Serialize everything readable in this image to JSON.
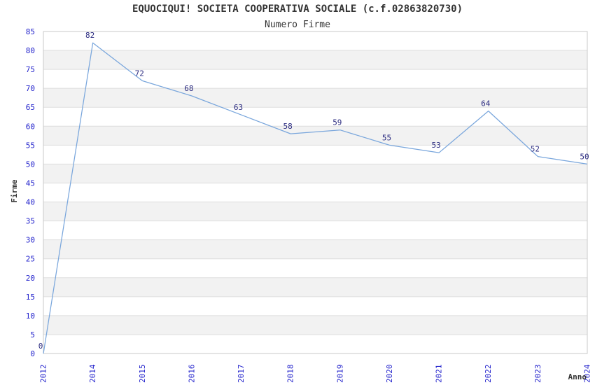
{
  "title": "EQUOCIQUI! SOCIETA COOPERATIVA SOCIALE (c.f.02863820730)",
  "subtitle": "Numero Firme",
  "chart_data": {
    "type": "line",
    "title": "EQUOCIQUI! SOCIETA COOPERATIVA SOCIALE (c.f.02863820730)",
    "subtitle": "Numero Firme",
    "xlabel": "Anno",
    "ylabel": "Firme",
    "categories": [
      "2012",
      "2014",
      "2015",
      "2016",
      "2017",
      "2018",
      "2019",
      "2020",
      "2021",
      "2022",
      "2023",
      "2024"
    ],
    "values": [
      0,
      82,
      72,
      68,
      63,
      58,
      59,
      55,
      53,
      64,
      52,
      50
    ],
    "point_labels": [
      "0",
      "82",
      "72",
      "68",
      "63",
      "58",
      "59",
      "55",
      "53",
      "64",
      "52",
      "50"
    ],
    "ylim": [
      0,
      85
    ],
    "ytick_step": 5,
    "grid": true,
    "legend_position": "none",
    "colors": {
      "line": "#79A6DC",
      "tick_labels": "#2323CC",
      "point_labels": "#2B2B80",
      "axis_titles": "#333333",
      "grid_line": "#DDDDDD",
      "plot_border": "#C9C9C9",
      "band_even": "#FFFFFF",
      "band_odd": "#F2F2F2",
      "background": "#FFFFFF"
    }
  }
}
